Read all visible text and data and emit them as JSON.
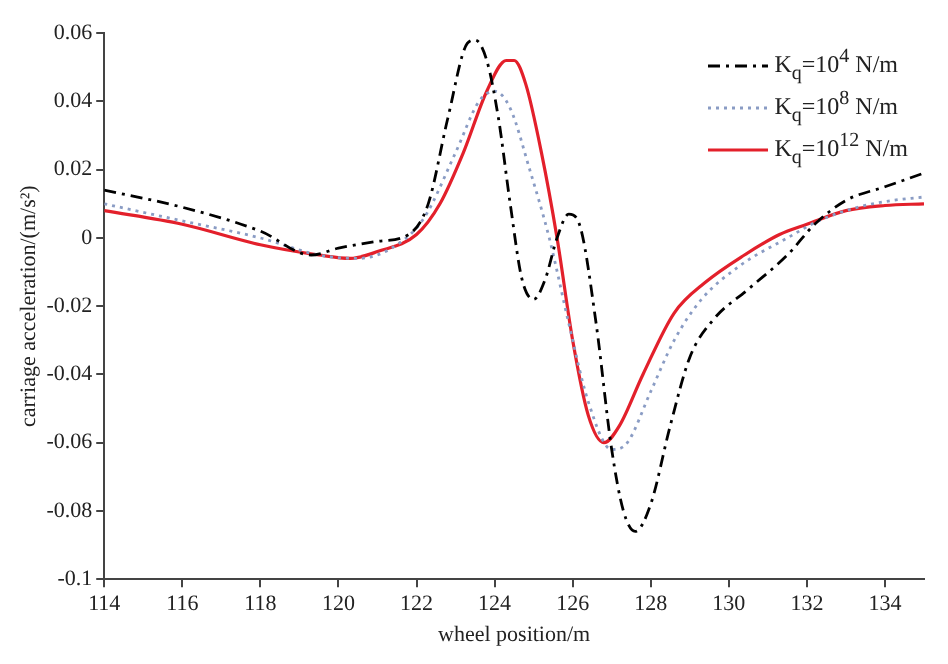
{
  "chart_data": {
    "type": "line",
    "xlabel": "wheel position/m",
    "ylabel": "carriage acceleration/(m/s²)",
    "xlim": [
      114,
      135
    ],
    "xticks": [
      114,
      116,
      118,
      120,
      122,
      124,
      126,
      128,
      130,
      132,
      134
    ],
    "ylim": [
      -0.1,
      0.06
    ],
    "yticks": [
      -0.1,
      -0.08,
      -0.06,
      -0.04,
      -0.02,
      0,
      0.02,
      0.04,
      0.06
    ],
    "legend": "top right",
    "marker": "none",
    "series": [
      {
        "name": "K$_{q}$=10$^{4}$ N/m",
        "color": "#000000",
        "line_style": "dashdot",
        "x": [
          114,
          116,
          118,
          119.3,
          120,
          121,
          121.8,
          122.3,
          122.8,
          123.3,
          123.5,
          123.8,
          124.1,
          124.4,
          124.7,
          125,
          125.3,
          125.6,
          125.9,
          126.2,
          126.6,
          127,
          127.3,
          127.6,
          128,
          128.5,
          129,
          129.6,
          130.5,
          131.5,
          132.2,
          133,
          134,
          135
        ],
        "values": [
          0.014,
          0.009,
          0.002,
          -0.005,
          -0.003,
          -0.001,
          0.001,
          0.01,
          0.035,
          0.057,
          0.058,
          0.052,
          0.035,
          0.01,
          -0.012,
          -0.018,
          -0.012,
          0,
          0.007,
          0.003,
          -0.025,
          -0.062,
          -0.08,
          -0.086,
          -0.078,
          -0.055,
          -0.035,
          -0.024,
          -0.015,
          -0.005,
          0.004,
          0.011,
          0.015,
          0.019
        ]
      },
      {
        "name": "K$_{q}$=10$^{8}$ N/m",
        "color": "#8a9cc4",
        "line_style": "dotted",
        "x": [
          114,
          116,
          118,
          119.5,
          120.5,
          121.5,
          122.2,
          123,
          123.6,
          124,
          124.4,
          124.9,
          125.4,
          125.9,
          126.4,
          127,
          127.4,
          128,
          128.6,
          129.3,
          130.3,
          131.5,
          132.3,
          133.3,
          134.2,
          135
        ],
        "values": [
          0.01,
          0.005,
          0,
          -0.005,
          -0.006,
          -0.002,
          0.006,
          0.025,
          0.04,
          0.043,
          0.038,
          0.02,
          0,
          -0.025,
          -0.048,
          -0.062,
          -0.06,
          -0.045,
          -0.03,
          -0.018,
          -0.008,
          0,
          0.005,
          0.009,
          0.011,
          0.012
        ]
      },
      {
        "name": "K$_{q}$=10$^{12}$ N/m",
        "color": "#e3202b",
        "line_style": "solid",
        "x": [
          114,
          116,
          118,
          119.5,
          120.3,
          121,
          122,
          122.6,
          123.2,
          123.8,
          124.3,
          124.5,
          124.8,
          125.2,
          125.6,
          126,
          126.4,
          126.8,
          127.2,
          127.8,
          128.6,
          129.4,
          130.4,
          131.3,
          132,
          133,
          134,
          135
        ],
        "values": [
          0.008,
          0.004,
          -0.002,
          -0.005,
          -0.006,
          -0.004,
          0.001,
          0.01,
          0.025,
          0.043,
          0.052,
          0.052,
          0.045,
          0.025,
          0,
          -0.03,
          -0.052,
          -0.06,
          -0.055,
          -0.04,
          -0.022,
          -0.013,
          -0.005,
          0.001,
          0.004,
          0.008,
          0.0095,
          0.01
        ]
      }
    ]
  }
}
